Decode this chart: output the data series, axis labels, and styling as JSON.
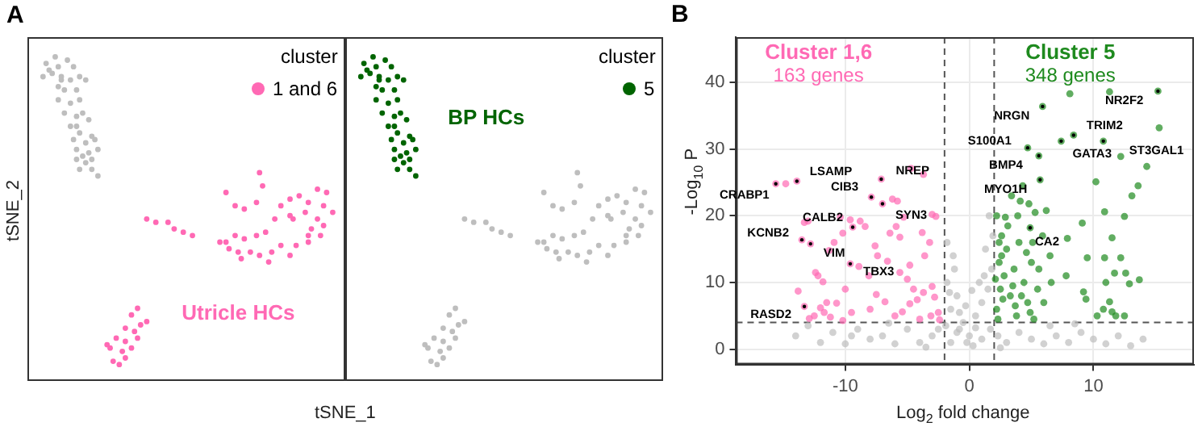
{
  "chart_data": [
    {
      "type": "other",
      "xlabel": "tSNE_1",
      "ylabel": "tSNE_2",
      "annotations": [
        "A",
        "cluster",
        "1 and 6",
        "Utricle HCs"
      ]
    },
    {
      "type": "other",
      "annotations": [
        "cluster",
        "5",
        "BP HCs"
      ]
    },
    {
      "type": "scatter",
      "marker": "circle",
      "grid": true,
      "xlabel": "Log$_{2}$ fold change",
      "ylabel": "-Log$_{10}$ P",
      "xlim": [
        -18.8,
        18.1
      ],
      "xticks": [
        -10,
        0,
        10
      ],
      "ylim": [
        -2.3,
        46.8
      ],
      "yticks": [
        0,
        10,
        20,
        30,
        40
      ],
      "ref_lines": [
        {
          "axis": "x",
          "value": -2,
          "color": "#555555",
          "line_style": "dashed"
        },
        {
          "axis": "x",
          "value": 2,
          "color": "#555555",
          "line_style": "dashed"
        },
        {
          "axis": "y",
          "value": 4,
          "color": "#555555",
          "line_style": "dashed"
        }
      ],
      "annotations": [
        "B",
        "Cluster 1,6",
        "163 genes",
        "Cluster 5",
        "348 genes",
        {
          "text": "CRABP1",
          "x": -15.6,
          "y": 24.8
        },
        {
          "text": "LSAMP",
          "x": -13.9,
          "y": 25.2
        },
        {
          "text": "NREP",
          "x": -7.1,
          "y": 25.5
        },
        {
          "text": "CIB3",
          "x": -7.9,
          "y": 22.8
        },
        {
          "text": "SYN3",
          "x": -7.0,
          "y": 21.8
        },
        {
          "text": "KCNB2",
          "x": -13.5,
          "y": 16.4
        },
        {
          "text": "CALB2",
          "x": -9.4,
          "y": 18.3
        },
        {
          "text": "VIM",
          "x": -12.8,
          "y": 15.8
        },
        {
          "text": "TBX3",
          "x": -9.6,
          "y": 12.8
        },
        {
          "text": "RASD2",
          "x": -13.3,
          "y": 6.4
        },
        {
          "text": "NRGN",
          "x": 5.9,
          "y": 36.4
        },
        {
          "text": "NR2F2",
          "x": 15.2,
          "y": 38.7
        },
        {
          "text": "TRIM2",
          "x": 8.4,
          "y": 32.1
        },
        {
          "text": "S100A1",
          "x": 4.7,
          "y": 30.2
        },
        {
          "text": "GATA3",
          "x": 7.4,
          "y": 31.2
        },
        {
          "text": "ST3GAL1",
          "x": 10.8,
          "y": 31.2
        },
        {
          "text": "BMP4",
          "x": 5.6,
          "y": 29.0
        },
        {
          "text": "MYO1H",
          "x": 5.7,
          "y": 25.4
        },
        {
          "text": "CA2",
          "x": 4.9,
          "y": 18.2
        }
      ],
      "series": [
        {
          "color": "#bebebe",
          "x": [
            -1.9,
            -1.5,
            -1,
            -0.5,
            0,
            0.5,
            1,
            1.5,
            1.8,
            1.3,
            1.9,
            -1.8,
            -1.2,
            -0.8,
            -0.2,
            0.3,
            1,
            1.7,
            2.3,
            3,
            4,
            5,
            6,
            7,
            8,
            9,
            10,
            11,
            12,
            13,
            -3,
            -4,
            -5,
            -6,
            -7,
            -8,
            -9,
            -10,
            -11,
            -12,
            -13,
            -1.5,
            -2.5,
            -1,
            0.5,
            -0.3,
            0.8,
            1.2,
            -1.3,
            -1.8,
            6.5,
            8.5,
            -6.5,
            -3.5,
            2.5,
            -9.5,
            14,
            -14,
            1.6,
            -0.8,
            0.2,
            -1.6
          ],
          "values": [
            3.5,
            6,
            8,
            4,
            2,
            5,
            7,
            9,
            12,
            15,
            17,
            10,
            12,
            3,
            1,
            0.5,
            1.5,
            3,
            2,
            1,
            2.5,
            1.5,
            0.8,
            2,
            1,
            2.5,
            1.5,
            0.8,
            2,
            0.5,
            2,
            1,
            3,
            0.8,
            2,
            1.5,
            3,
            0.8,
            2.5,
            1,
            3.5,
            1,
            3,
            2.5,
            3.2,
            6.5,
            10,
            11,
            14,
            16,
            3.5,
            3.8,
            3.9,
            0.3,
            0.2,
            2,
            1.5,
            2,
            20,
            5.5,
            8.8,
            8.5
          ]
        },
        {
          "color": "#ff69b4",
          "x": [
            -15.6,
            -14.8,
            -13.9,
            -13.3,
            -13.0,
            -12.4,
            -12.2,
            -11.8,
            -12.8,
            -13.5,
            -10.4,
            -9.6,
            -9.4,
            -8.8,
            -8.4,
            -10.2,
            -10.9,
            -11.3,
            -8.9,
            -9.6,
            -8.1,
            -7.4,
            -7.6,
            -6.6,
            -7.1,
            -7.9,
            -7.0,
            -4.7,
            -3.7,
            -6.2,
            -5.8,
            -5.3,
            -5.9,
            -6.4,
            -5.6,
            -3.0,
            -2.7,
            -3.8,
            -3.2,
            -3.6,
            -4.8,
            -5.6,
            -5.0,
            -4.5,
            -3.7,
            -3.0,
            -2.8,
            -4.2,
            -4.8,
            -5.4,
            -6.0,
            -3.1,
            -2.5,
            -2.4,
            -4.0,
            -6.8,
            -7.5,
            -8.0,
            -9.5,
            -10.2,
            -11.2,
            -12.0,
            -12.5,
            -13.3,
            -12.9,
            -11.5,
            -13.8,
            -11.7,
            -10.7,
            -10.0
          ],
          "values": [
            24.8,
            24.8,
            25.2,
            19,
            19.2,
            11.5,
            11.0,
            10.1,
            15.8,
            16.4,
            19.8,
            19.4,
            18.3,
            19.2,
            18.4,
            17.4,
            16.0,
            14.8,
            12.4,
            12.8,
            11.0,
            14.0,
            15.5,
            13.2,
            25.5,
            22.8,
            21.8,
            27.1,
            26.2,
            22.5,
            22.2,
            19.8,
            18.4,
            17.4,
            16.8,
            20.2,
            19.9,
            17.5,
            16.0,
            14.0,
            12.6,
            11.5,
            10.5,
            9.0,
            8.5,
            9.4,
            7.8,
            7.4,
            6.8,
            5.6,
            5.0,
            5.0,
            5.5,
            4.4,
            4.5,
            7.1,
            8.2,
            6.0,
            5.5,
            4.3,
            4.8,
            6.2,
            5.0,
            6.4,
            4.6,
            7.0,
            8.7,
            5.5,
            6.9,
            9.0
          ]
        },
        {
          "color": "#1e8a1e",
          "x": [
            5.9,
            15.2,
            11.3,
            8.1,
            15.3,
            8.4,
            4.7,
            7.4,
            10.8,
            12.2,
            14.3,
            5.6,
            5.7,
            4.9,
            10.2,
            13.6,
            13.1,
            10.9,
            12.5,
            9.1,
            11.5,
            7.9,
            9.5,
            10.9,
            12.2,
            13.7,
            12.6,
            11.7,
            12.9,
            11.0,
            9.2,
            9.4,
            11.3,
            10.8,
            11.5,
            11.8,
            10.3,
            12.5,
            7.8,
            6.6,
            6.0,
            5.0,
            6.5,
            5.9,
            5.3,
            4.1,
            2.9,
            3.4,
            4.3,
            2.6,
            3.0,
            2.4,
            3.6,
            4.4,
            2.5,
            3.3,
            4.7,
            2.2,
            3.8,
            5.2,
            2.3,
            2.8,
            4.0,
            3.1,
            2.2,
            4.6,
            5.6,
            3.7,
            2.7,
            4.9,
            2.1,
            3.5,
            4.2,
            5.5,
            2.6,
            3.9,
            2.4,
            4.8,
            6.2,
            5.1
          ],
          "values": [
            36.4,
            38.7,
            38.6,
            38.3,
            33.2,
            32.1,
            30.2,
            31.2,
            31.2,
            28.9,
            27.4,
            29.0,
            25.4,
            18.2,
            25.1,
            24.5,
            23.0,
            20.6,
            19.9,
            18.9,
            16.7,
            16.6,
            13.7,
            13.7,
            13.7,
            10.4,
            11.4,
            11.4,
            9.8,
            10.0,
            8.6,
            7.5,
            7.1,
            6.0,
            5.6,
            5.0,
            5.0,
            5.0,
            11.0,
            10.0,
            7.0,
            13.0,
            14.0,
            17.0,
            20.5,
            22.2,
            19.8,
            23.0,
            24.5,
            17.0,
            15.0,
            13.0,
            12.0,
            10.0,
            9.0,
            8.0,
            7.0,
            6.0,
            5.0,
            4.5,
            4.5,
            11.0,
            16.0,
            18.5,
            20.0,
            14.5,
            12.0,
            6.5,
            7.5,
            5.5,
            10.5,
            9.5,
            8.0,
            9.0,
            14.0,
            20.0,
            16.0,
            21.8,
            20.8,
            16.0
          ]
        }
      ]
    }
  ]
}
